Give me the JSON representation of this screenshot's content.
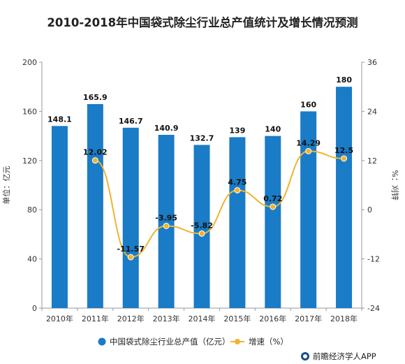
{
  "footer": {
    "text": "前瞻经济学人APP"
  },
  "chart_data": {
    "type": "bar",
    "title": "2010-2018年中国袋式除尘行业总产值统计及增长情况预测",
    "categories": [
      "2010年",
      "2011年",
      "2012年",
      "2013年",
      "2014年",
      "2015年",
      "2016年",
      "2017年",
      "2018年"
    ],
    "ylabel": "单位：亿元",
    "y2label": "%：刈锌",
    "ylim": [
      0,
      200
    ],
    "yticks": [
      "0",
      "40",
      "80",
      "120",
      "160",
      "200"
    ],
    "y2lim": [
      -24,
      36
    ],
    "y2ticks": [
      "-24",
      "-12",
      "0",
      "12",
      "24",
      "36"
    ],
    "grid": false,
    "legend_position": "bottom",
    "series": [
      {
        "name": "中国袋式除尘行业总产值（亿元）",
        "type": "bar",
        "axis": "left",
        "color": "#1a7bc6",
        "values": [
          148.1,
          165.9,
          146.7,
          140.9,
          132.7,
          139,
          140,
          160,
          180
        ],
        "labels": [
          "148.1",
          "165.9",
          "146.7",
          "140.9",
          "132.7",
          "139",
          "140",
          "160",
          "180"
        ]
      },
      {
        "name": "增速（%）",
        "type": "line",
        "axis": "right",
        "color": "#f0b330",
        "values": [
          null,
          12.02,
          -11.57,
          -3.95,
          -5.82,
          4.75,
          0.72,
          14.29,
          12.5
        ],
        "labels": [
          "",
          "12.02",
          "-11.57",
          "-3.95",
          "-5.82",
          "4.75",
          "0.72",
          "14.29",
          "12.5"
        ]
      }
    ]
  }
}
